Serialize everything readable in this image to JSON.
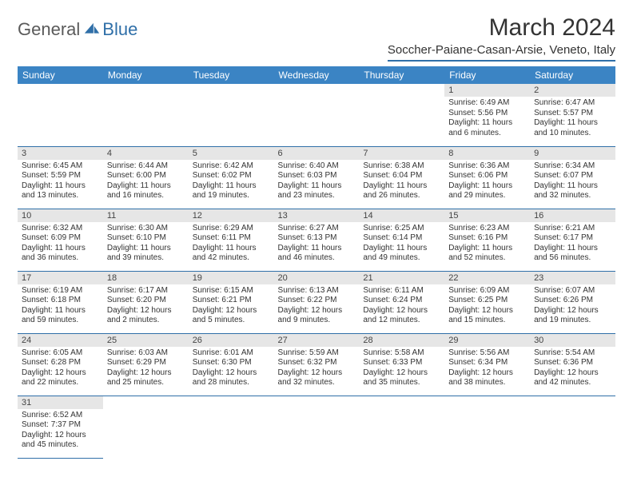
{
  "logo": {
    "part1": "General",
    "part2": "Blue"
  },
  "title": "March 2024",
  "location": "Soccher-Paiane-Casan-Arsie, Veneto, Italy",
  "colors": {
    "header_bg": "#3b84c4",
    "accent": "#2f6fa8",
    "daynum_bg": "#e6e6e6",
    "text": "#333333",
    "logo_gray": "#5a5a5a"
  },
  "weekdays": [
    "Sunday",
    "Monday",
    "Tuesday",
    "Wednesday",
    "Thursday",
    "Friday",
    "Saturday"
  ],
  "weeks": [
    [
      null,
      null,
      null,
      null,
      null,
      {
        "num": "1",
        "sunrise": "6:49 AM",
        "sunset": "5:56 PM",
        "daylight": "11 hours and 6 minutes."
      },
      {
        "num": "2",
        "sunrise": "6:47 AM",
        "sunset": "5:57 PM",
        "daylight": "11 hours and 10 minutes."
      }
    ],
    [
      {
        "num": "3",
        "sunrise": "6:45 AM",
        "sunset": "5:59 PM",
        "daylight": "11 hours and 13 minutes."
      },
      {
        "num": "4",
        "sunrise": "6:44 AM",
        "sunset": "6:00 PM",
        "daylight": "11 hours and 16 minutes."
      },
      {
        "num": "5",
        "sunrise": "6:42 AM",
        "sunset": "6:02 PM",
        "daylight": "11 hours and 19 minutes."
      },
      {
        "num": "6",
        "sunrise": "6:40 AM",
        "sunset": "6:03 PM",
        "daylight": "11 hours and 23 minutes."
      },
      {
        "num": "7",
        "sunrise": "6:38 AM",
        "sunset": "6:04 PM",
        "daylight": "11 hours and 26 minutes."
      },
      {
        "num": "8",
        "sunrise": "6:36 AM",
        "sunset": "6:06 PM",
        "daylight": "11 hours and 29 minutes."
      },
      {
        "num": "9",
        "sunrise": "6:34 AM",
        "sunset": "6:07 PM",
        "daylight": "11 hours and 32 minutes."
      }
    ],
    [
      {
        "num": "10",
        "sunrise": "6:32 AM",
        "sunset": "6:09 PM",
        "daylight": "11 hours and 36 minutes."
      },
      {
        "num": "11",
        "sunrise": "6:30 AM",
        "sunset": "6:10 PM",
        "daylight": "11 hours and 39 minutes."
      },
      {
        "num": "12",
        "sunrise": "6:29 AM",
        "sunset": "6:11 PM",
        "daylight": "11 hours and 42 minutes."
      },
      {
        "num": "13",
        "sunrise": "6:27 AM",
        "sunset": "6:13 PM",
        "daylight": "11 hours and 46 minutes."
      },
      {
        "num": "14",
        "sunrise": "6:25 AM",
        "sunset": "6:14 PM",
        "daylight": "11 hours and 49 minutes."
      },
      {
        "num": "15",
        "sunrise": "6:23 AM",
        "sunset": "6:16 PM",
        "daylight": "11 hours and 52 minutes."
      },
      {
        "num": "16",
        "sunrise": "6:21 AM",
        "sunset": "6:17 PM",
        "daylight": "11 hours and 56 minutes."
      }
    ],
    [
      {
        "num": "17",
        "sunrise": "6:19 AM",
        "sunset": "6:18 PM",
        "daylight": "11 hours and 59 minutes."
      },
      {
        "num": "18",
        "sunrise": "6:17 AM",
        "sunset": "6:20 PM",
        "daylight": "12 hours and 2 minutes."
      },
      {
        "num": "19",
        "sunrise": "6:15 AM",
        "sunset": "6:21 PM",
        "daylight": "12 hours and 5 minutes."
      },
      {
        "num": "20",
        "sunrise": "6:13 AM",
        "sunset": "6:22 PM",
        "daylight": "12 hours and 9 minutes."
      },
      {
        "num": "21",
        "sunrise": "6:11 AM",
        "sunset": "6:24 PM",
        "daylight": "12 hours and 12 minutes."
      },
      {
        "num": "22",
        "sunrise": "6:09 AM",
        "sunset": "6:25 PM",
        "daylight": "12 hours and 15 minutes."
      },
      {
        "num": "23",
        "sunrise": "6:07 AM",
        "sunset": "6:26 PM",
        "daylight": "12 hours and 19 minutes."
      }
    ],
    [
      {
        "num": "24",
        "sunrise": "6:05 AM",
        "sunset": "6:28 PM",
        "daylight": "12 hours and 22 minutes."
      },
      {
        "num": "25",
        "sunrise": "6:03 AM",
        "sunset": "6:29 PM",
        "daylight": "12 hours and 25 minutes."
      },
      {
        "num": "26",
        "sunrise": "6:01 AM",
        "sunset": "6:30 PM",
        "daylight": "12 hours and 28 minutes."
      },
      {
        "num": "27",
        "sunrise": "5:59 AM",
        "sunset": "6:32 PM",
        "daylight": "12 hours and 32 minutes."
      },
      {
        "num": "28",
        "sunrise": "5:58 AM",
        "sunset": "6:33 PM",
        "daylight": "12 hours and 35 minutes."
      },
      {
        "num": "29",
        "sunrise": "5:56 AM",
        "sunset": "6:34 PM",
        "daylight": "12 hours and 38 minutes."
      },
      {
        "num": "30",
        "sunrise": "5:54 AM",
        "sunset": "6:36 PM",
        "daylight": "12 hours and 42 minutes."
      }
    ],
    [
      {
        "num": "31",
        "sunrise": "6:52 AM",
        "sunset": "7:37 PM",
        "daylight": "12 hours and 45 minutes."
      },
      null,
      null,
      null,
      null,
      null,
      null
    ]
  ]
}
